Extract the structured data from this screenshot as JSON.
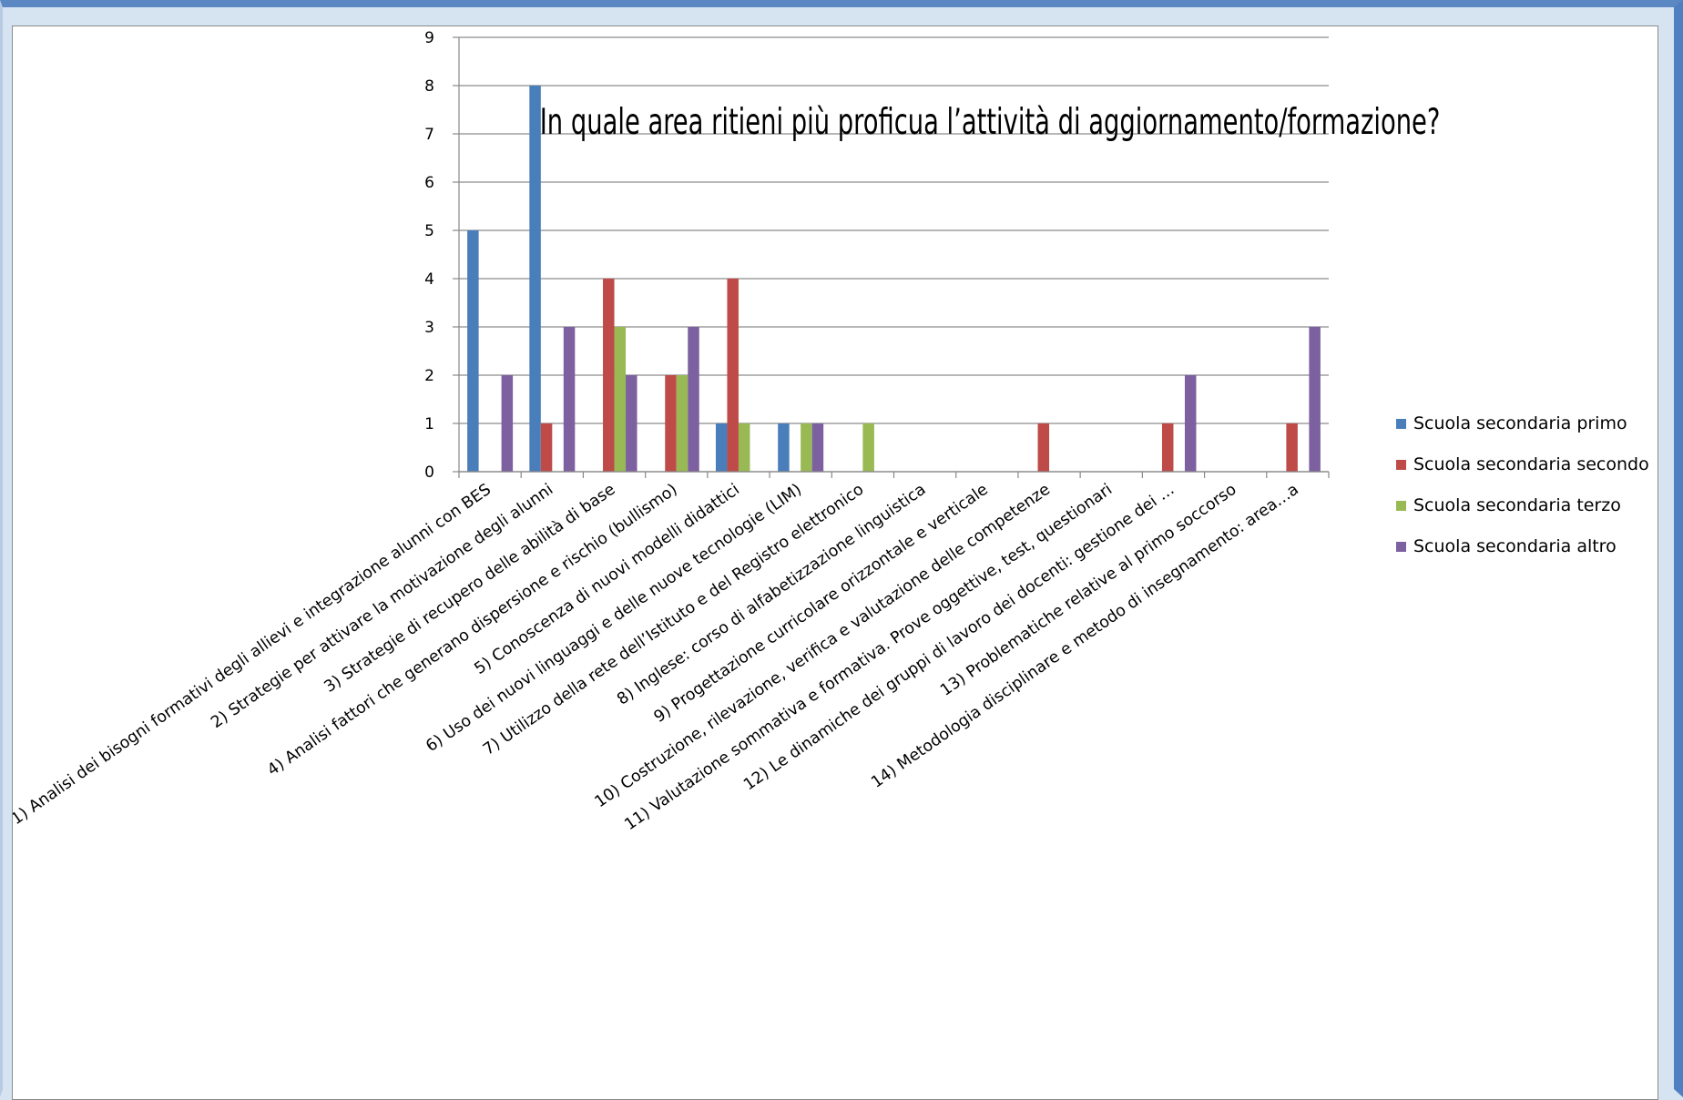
{
  "chart_data": {
    "type": "bar",
    "title": "In quale area ritieni più proficua l’attività di aggiornamento/formazione?",
    "xlabel": "",
    "ylabel": "",
    "ylim": [
      0,
      9
    ],
    "yticks": [
      0,
      1,
      2,
      3,
      4,
      5,
      6,
      7,
      8,
      9
    ],
    "grid": true,
    "legend_position": "right",
    "categories": [
      "1) Analisi dei bisogni formativi degli allievi e integrazione alunni con BES",
      "2) Strategie per attivare la motivazione degli alunni",
      "3) Strategie di recupero delle abilità di base",
      "4) Analisi fattori che generano dispersione e rischio (bullismo)",
      "5) Conoscenza di nuovi modelli didattici",
      "6) Uso dei nuovi linguaggi e delle nuove tecnologie (LIM)",
      "7) Utilizzo della rete dell’Istituto e del Registro elettronico",
      "8) Inglese: corso di alfabetizzazione linguistica",
      "9) Progettazione curricolare orizzontale e verticale",
      "10) Costruzione, rilevazione, verifica e valutazione delle competenze",
      "11) Valutazione sommativa e formativa. Prove oggettive, test, questionari",
      "12) Le dinamiche dei gruppi di lavoro dei docenti: gestione dei …",
      "13) Problematiche relative al primo soccorso",
      "14) Metodologia disciplinare e metodo di insegnamento: area…a"
    ],
    "series": [
      {
        "name": "Scuola secondaria primo",
        "color": "#4a7ebb",
        "values": [
          5,
          8,
          0,
          0,
          1,
          1,
          0,
          0,
          0,
          0,
          0,
          0,
          0,
          0
        ]
      },
      {
        "name": "Scuola secondaria secondo",
        "color": "#be4b48",
        "values": [
          0,
          1,
          4,
          2,
          4,
          0,
          0,
          0,
          0,
          1,
          0,
          1,
          0,
          1
        ]
      },
      {
        "name": "Scuola secondaria terzo",
        "color": "#98b954",
        "values": [
          0,
          0,
          3,
          2,
          1,
          1,
          1,
          0,
          0,
          0,
          0,
          0,
          0,
          0
        ]
      },
      {
        "name": "Scuola secondaria altro",
        "color": "#7d60a0",
        "values": [
          2,
          3,
          2,
          3,
          0,
          1,
          0,
          0,
          0,
          0,
          0,
          2,
          0,
          3
        ]
      }
    ]
  }
}
